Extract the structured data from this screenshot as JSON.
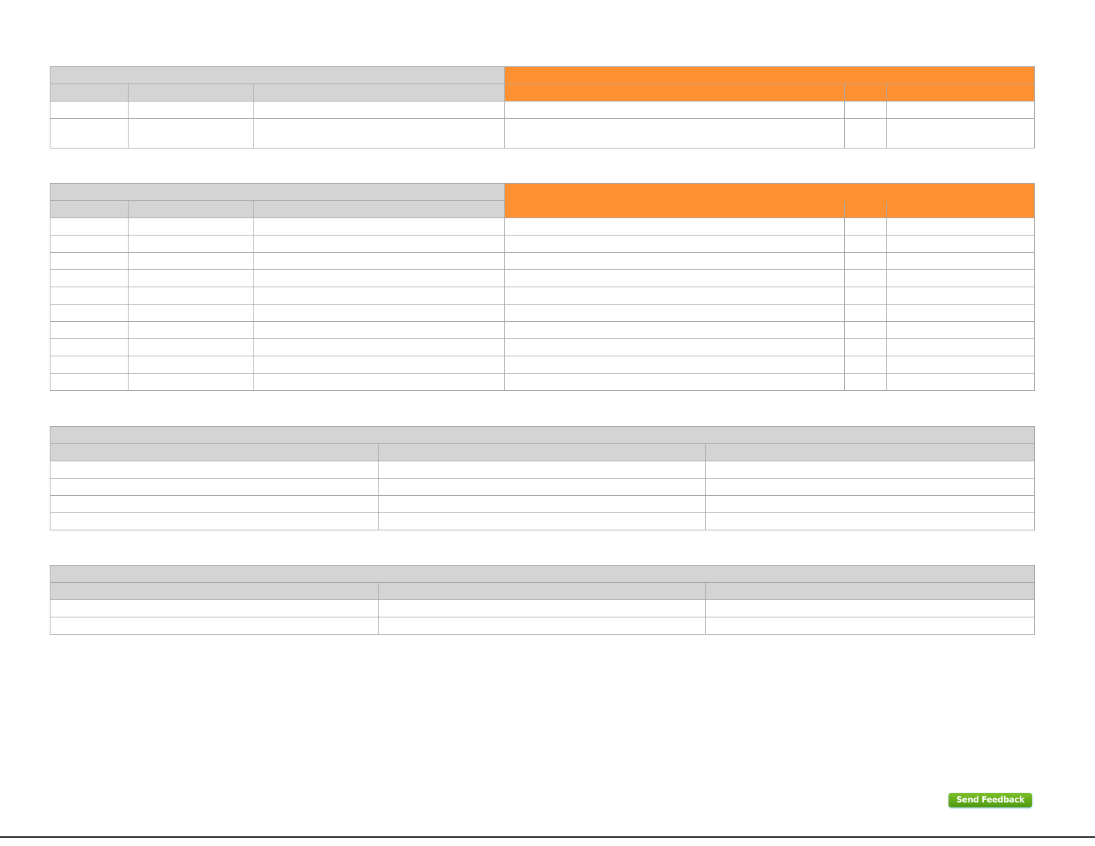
{
  "colors": {
    "header_gray": "#d4d4d4",
    "header_orange": "#ff9132",
    "border": "#a6a6a6",
    "feedback_button": "#5fa81b"
  },
  "feedback": {
    "label": "Send Feedback"
  }
}
